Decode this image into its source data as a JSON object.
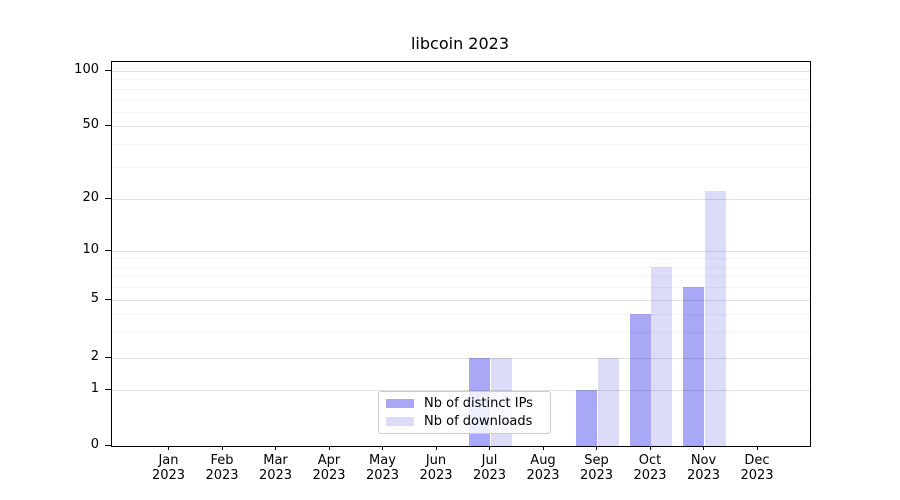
{
  "chart_data": {
    "type": "bar",
    "title": "libcoin 2023",
    "months": [
      "Jan",
      "Feb",
      "Mar",
      "Apr",
      "May",
      "Jun",
      "Jul",
      "Aug",
      "Sep",
      "Oct",
      "Nov",
      "Dec"
    ],
    "year": "2023",
    "series": [
      {
        "name": "Nb of distinct IPs",
        "color": "#a8a8f6",
        "values": [
          0,
          0,
          0,
          0,
          0,
          0,
          2,
          0,
          1,
          4,
          6,
          0
        ]
      },
      {
        "name": "Nb of downloads",
        "color": "#dcdcf8",
        "values": [
          0,
          0,
          0,
          0,
          0,
          0,
          2,
          0,
          2,
          8,
          22,
          0
        ]
      }
    ],
    "yaxis": {
      "scale": "symlog",
      "major_ticks": [
        0,
        1,
        2,
        5,
        10,
        20,
        50,
        100
      ],
      "minor_ticks": [
        3,
        4,
        6,
        7,
        8,
        9,
        30,
        40,
        60,
        70,
        80,
        90
      ],
      "ylim": [
        0,
        110
      ]
    },
    "xlabel": "",
    "ylabel": "",
    "grid": "both",
    "legend": {
      "position": "lower center",
      "entries": [
        "Nb of distinct IPs",
        "Nb of downloads"
      ]
    }
  }
}
